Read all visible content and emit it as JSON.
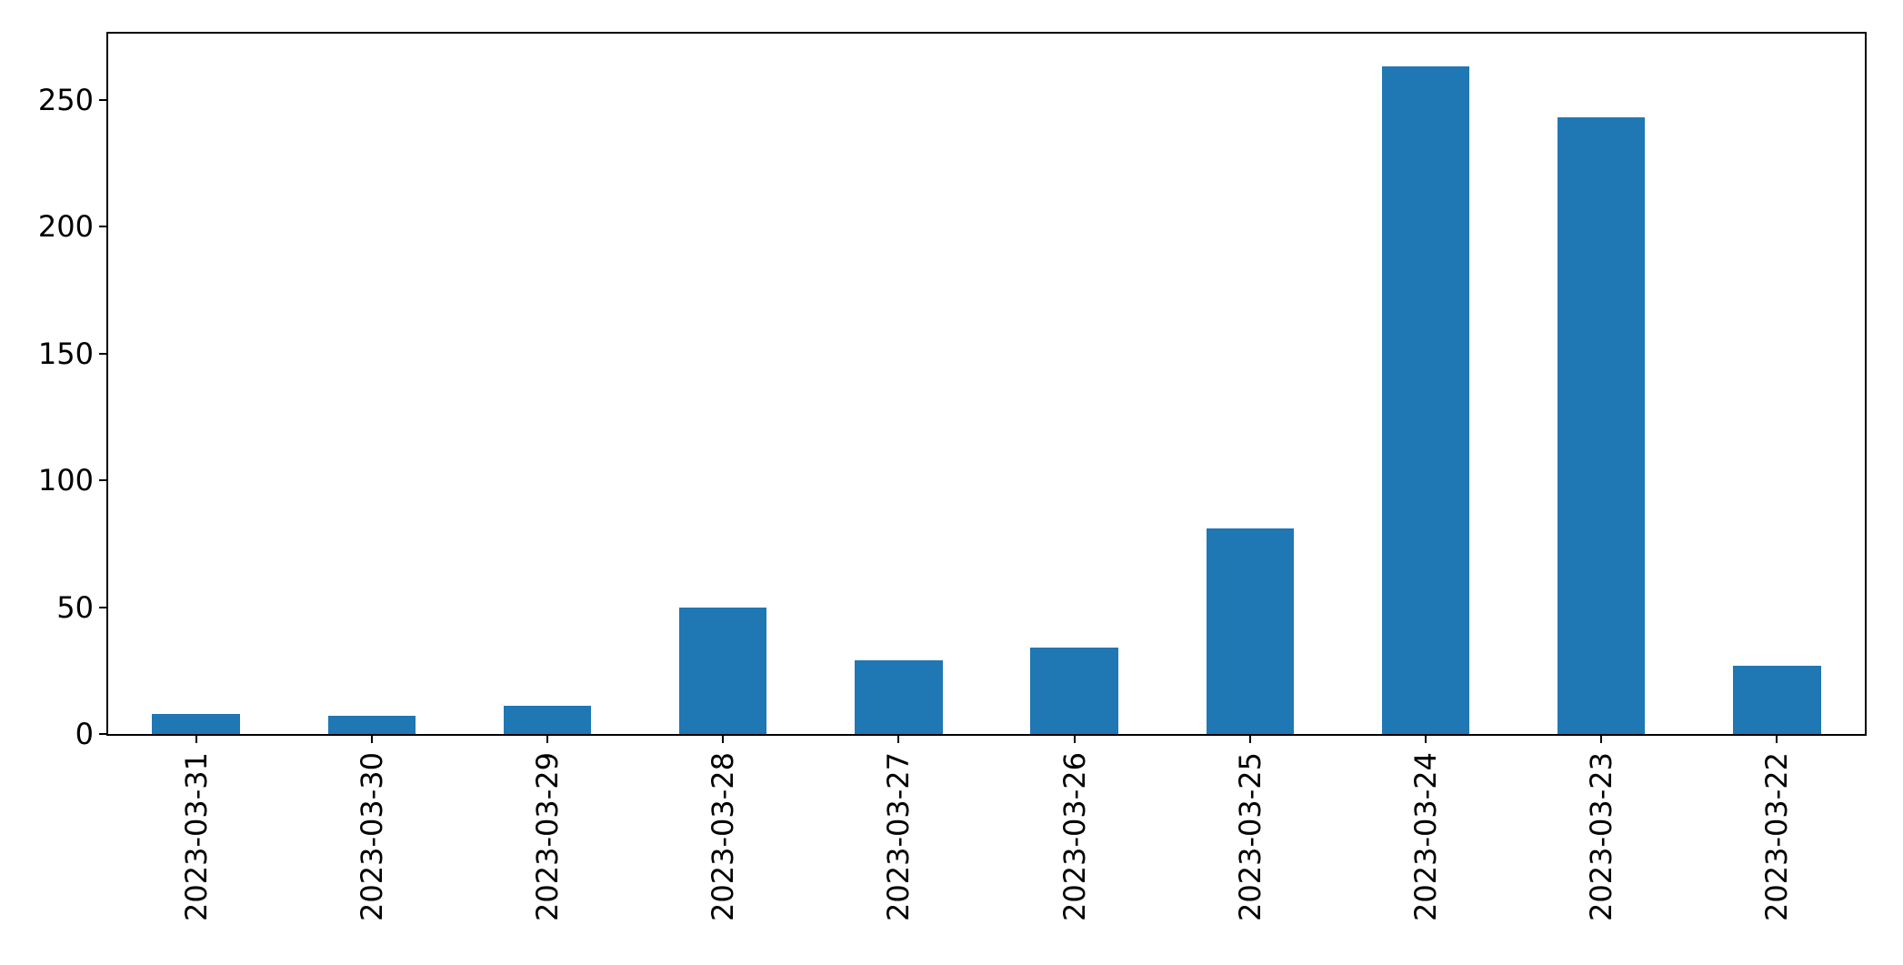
{
  "chart_data": {
    "type": "bar",
    "title": "",
    "xlabel": "",
    "ylabel": "",
    "categories": [
      "2023-03-31",
      "2023-03-30",
      "2023-03-29",
      "2023-03-28",
      "2023-03-27",
      "2023-03-26",
      "2023-03-25",
      "2023-03-24",
      "2023-03-23",
      "2023-03-22"
    ],
    "values": [
      8,
      7,
      11,
      50,
      29,
      34,
      81,
      263,
      243,
      27
    ],
    "ylim": [
      0,
      276
    ],
    "yticks": [
      0,
      50,
      100,
      150,
      200,
      250
    ],
    "ytick_labels": [
      "0",
      "50",
      "100",
      "150",
      "200",
      "250"
    ],
    "x_tick_rotation": 90,
    "bar_width_fraction": 0.5,
    "grid": false,
    "legend": "none",
    "bar_color": "#1f77b4",
    "axis_color": "#000000",
    "text_color": "#000000",
    "background_color": "#ffffff"
  }
}
